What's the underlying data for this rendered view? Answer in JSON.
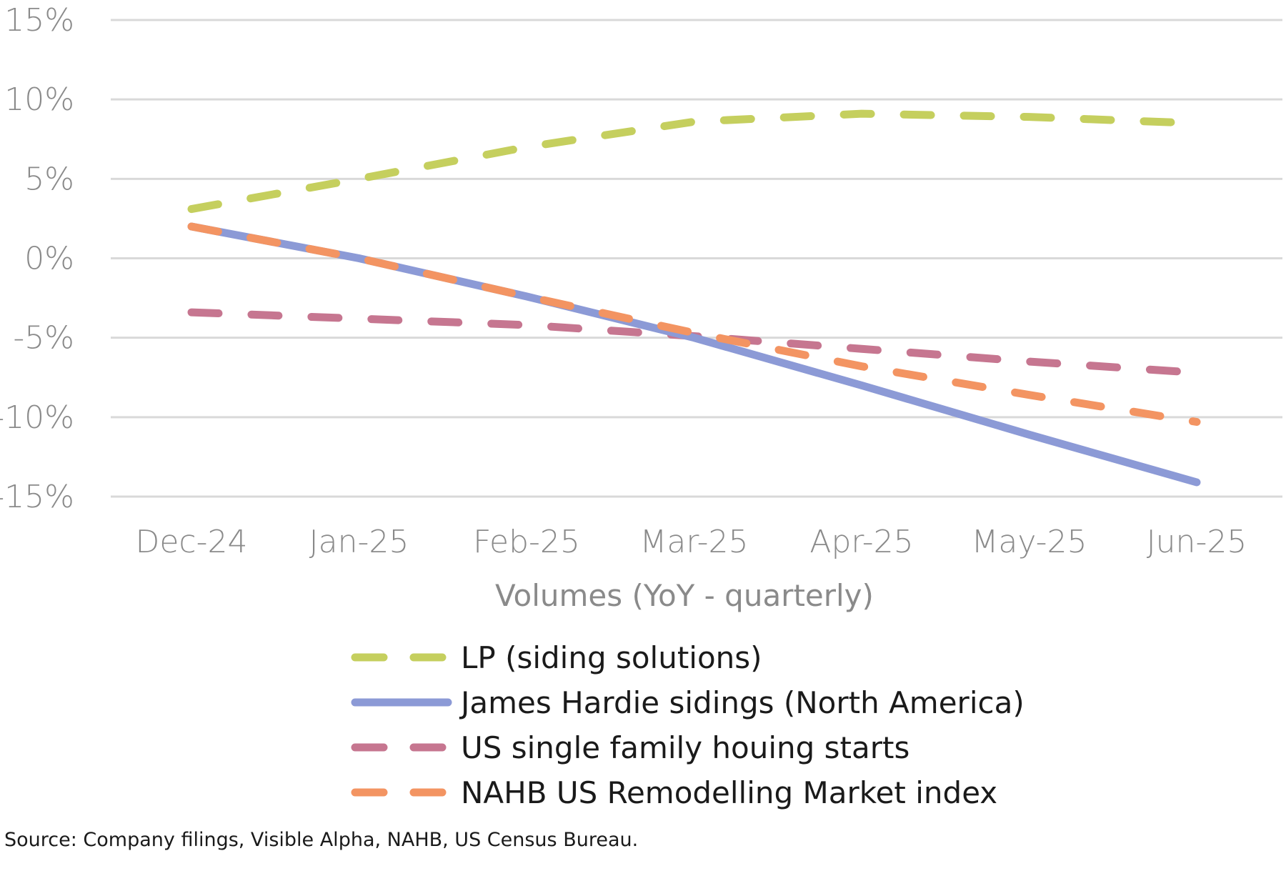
{
  "chart_data": {
    "type": "line",
    "title": "",
    "xlabel": "Volumes (YoY - quarterly)",
    "ylabel": "",
    "categories": [
      "Dec-24",
      "Jan-25",
      "Feb-25",
      "Mar-25",
      "Apr-25",
      "May-25",
      "Jun-25"
    ],
    "ylim": [
      -15,
      15
    ],
    "yticks": [
      15,
      10,
      5,
      0,
      -5,
      -10,
      -15
    ],
    "ytick_labels": [
      "15%",
      "10%",
      "5%",
      "0%",
      "-5%",
      "-10%",
      "-15%"
    ],
    "grid": true,
    "legend_position": "bottom",
    "series": [
      {
        "name": "LP (siding solutions)",
        "color": "#c5cf5e",
        "style": "dashed",
        "values": [
          3.1,
          5.0,
          7.0,
          8.6,
          9.1,
          8.9,
          8.5
        ]
      },
      {
        "name": "James Hardie sidings (North America)",
        "color": "#8c9ad6",
        "style": "solid",
        "values": [
          2.0,
          0.0,
          -2.4,
          -5.0,
          -8.0,
          -11.1,
          -14.1
        ]
      },
      {
        "name": "US single family houing starts",
        "color": "#c67690",
        "style": "dashed",
        "values": [
          -3.4,
          -3.8,
          -4.2,
          -4.9,
          -5.7,
          -6.5,
          -7.2
        ]
      },
      {
        "name": "NAHB US Remodelling Market index",
        "color": "#f39462",
        "style": "dashed",
        "values": [
          2.0,
          0.0,
          -2.4,
          -4.7,
          -6.8,
          -8.6,
          -10.3
        ]
      }
    ],
    "source": "Source: Company filings, Visible Alpha, NAHB, US Census Bureau."
  }
}
